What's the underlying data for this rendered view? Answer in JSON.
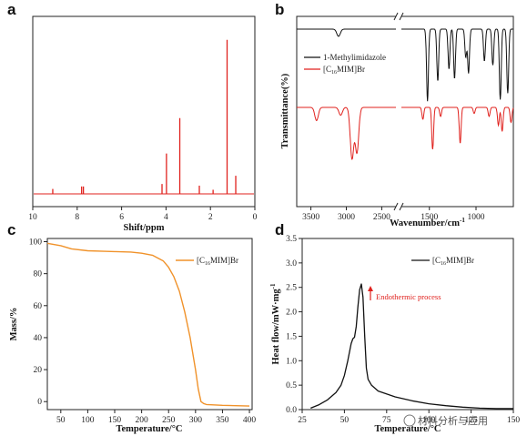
{
  "figure": {
    "watermark": "材料分析与应用"
  },
  "chart_data": [
    {
      "panel": "a",
      "type": "line",
      "title": "",
      "xlabel": "Shift/ppm",
      "ylabel": "",
      "xlim": [
        10,
        0
      ],
      "x_reversed": true,
      "xticks": [
        10,
        8,
        6,
        4,
        2,
        0
      ],
      "grid": false,
      "color": "#e0211d",
      "peaks": [
        {
          "x": 9.1,
          "h": 0.03
        },
        {
          "x": 7.8,
          "h": 0.045
        },
        {
          "x": 7.72,
          "h": 0.045
        },
        {
          "x": 4.18,
          "h": 0.06
        },
        {
          "x": 3.98,
          "h": 0.245
        },
        {
          "x": 3.38,
          "h": 0.46
        },
        {
          "x": 2.5,
          "h": 0.05
        },
        {
          "x": 1.88,
          "h": 0.025
        },
        {
          "x": 1.25,
          "h": 0.935
        },
        {
          "x": 0.86,
          "h": 0.11
        }
      ]
    },
    {
      "panel": "b",
      "type": "line",
      "title": "",
      "xlabel": "Wavenumber/cm",
      "xlabel_sup": "-1",
      "ylabel": "Transmittance(%)",
      "xtick_labels": [
        "3500",
        "3000",
        "2500",
        "1500",
        "1000"
      ],
      "axis_break": true,
      "grid": false,
      "legend_position": "top-right",
      "series": [
        {
          "name": "1-Methylimidazole",
          "color": "#111111",
          "bands": [
            [
              3110,
              0.09
            ],
            [
              1520,
              0.9
            ],
            [
              1410,
              0.65
            ],
            [
              1290,
              0.5
            ],
            [
              1230,
              0.62
            ],
            [
              1110,
              0.35
            ],
            [
              1080,
              0.55
            ],
            [
              910,
              0.4
            ],
            [
              820,
              0.45
            ],
            [
              740,
              0.88
            ],
            [
              660,
              0.8
            ]
          ]
        },
        {
          "name": "[C16MIM]Br",
          "name_parts": {
            "pre": "[C",
            "sub": "16",
            "post": "MIM]Br"
          },
          "color": "#e0211d",
          "bands": [
            [
              3420,
              0.22
            ],
            [
              3080,
              0.13
            ],
            [
              2920,
              0.85
            ],
            [
              2850,
              0.75
            ],
            [
              1570,
              0.2
            ],
            [
              1465,
              0.7
            ],
            [
              1380,
              0.15
            ],
            [
              1170,
              0.6
            ],
            [
              1020,
              0.1
            ],
            [
              860,
              0.15
            ],
            [
              760,
              0.3
            ],
            [
              720,
              0.4
            ],
            [
              625,
              0.25
            ]
          ]
        }
      ]
    },
    {
      "panel": "c",
      "type": "line",
      "title": "",
      "xlabel": "Temperature/°C",
      "ylabel": "Mass/%",
      "xlim": [
        25,
        405
      ],
      "ylim": [
        -5,
        102
      ],
      "xticks": [
        50,
        100,
        150,
        200,
        250,
        300,
        350,
        400
      ],
      "yticks": [
        0,
        20,
        40,
        60,
        80,
        100
      ],
      "grid": false,
      "legend_position": "top-right",
      "series": [
        {
          "name": "[C16MIM]Br",
          "name_parts": {
            "pre": "[C",
            "sub": "16",
            "post": "MIM]Br"
          },
          "color": "#f0922a",
          "x": [
            25,
            50,
            70,
            100,
            130,
            150,
            180,
            200,
            220,
            240,
            250,
            260,
            270,
            280,
            290,
            300,
            305,
            310,
            315,
            320,
            350,
            400
          ],
          "y": [
            99,
            97.5,
            95.5,
            94.3,
            94,
            93.8,
            93.5,
            92.8,
            91.5,
            88,
            84,
            78,
            69,
            56,
            40,
            20,
            8,
            0,
            -1.2,
            -1.8,
            -2.3,
            -2.8
          ]
        }
      ]
    },
    {
      "panel": "d",
      "type": "line",
      "title": "",
      "xlabel": "Temperature/°C",
      "ylabel": "Heat flow/mW·mg",
      "ylabel_sup": "-1",
      "xlim": [
        25,
        150
      ],
      "ylim": [
        0,
        3.5
      ],
      "xticks": [
        25,
        50,
        75,
        100,
        125,
        150
      ],
      "yticks": [
        0.0,
        0.5,
        1.0,
        1.5,
        2.0,
        2.5,
        3.0,
        3.5
      ],
      "grid": false,
      "legend_position": "top-right",
      "annotation": "Endothermic process",
      "series": [
        {
          "name": "[C16MIM]Br",
          "name_parts": {
            "pre": "[C",
            "sub": "16",
            "post": "MIM]Br"
          },
          "color": "#111111",
          "x": [
            30,
            35,
            40,
            45,
            48,
            50,
            52,
            54,
            55,
            56,
            57,
            58,
            59,
            60,
            61,
            62,
            63,
            64,
            66,
            70,
            80,
            90,
            100,
            110,
            120,
            130,
            140,
            150
          ],
          "y": [
            0.03,
            0.1,
            0.2,
            0.35,
            0.5,
            0.7,
            1.0,
            1.35,
            1.45,
            1.48,
            1.7,
            2.1,
            2.45,
            2.57,
            2.3,
            1.5,
            0.85,
            0.62,
            0.5,
            0.38,
            0.26,
            0.18,
            0.12,
            0.08,
            0.05,
            0.03,
            0.02,
            0.02
          ]
        }
      ]
    }
  ]
}
